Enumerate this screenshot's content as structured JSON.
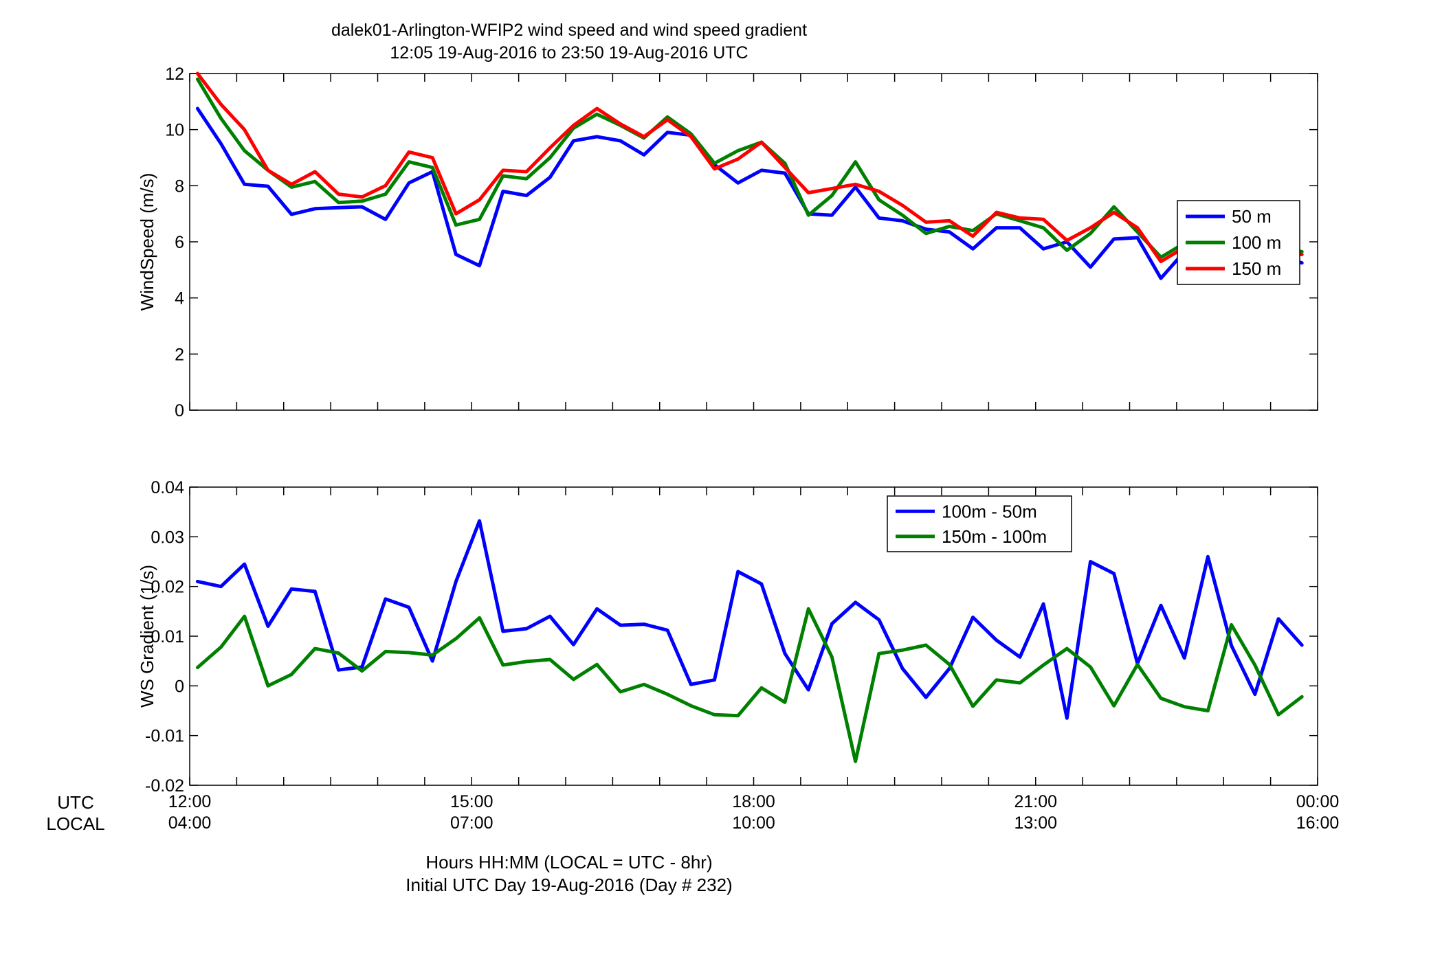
{
  "figure": {
    "title_line1": "dalek01-Arlington-WFIP2  wind speed and wind speed gradient",
    "title_line2": "12:05 19-Aug-2016 to 23:50 19-Aug-2016  UTC",
    "row_label_utc": "UTC",
    "row_label_local": "LOCAL",
    "xlabel_line1": "Hours HH:MM  (LOCAL = UTC - 8hr)",
    "xlabel_line2": "Initial UTC Day 19-Aug-2016 (Day # 232)"
  },
  "colors": {
    "blue": "#0000ff",
    "green": "#008000",
    "red": "#ff0000"
  },
  "chart_data": [
    {
      "type": "line",
      "title": "",
      "xlabel": "",
      "ylabel": "WindSpeed (m/s)",
      "xlim": [
        12.0,
        24.0
      ],
      "ylim": [
        0,
        12
      ],
      "yticks": [
        0,
        2,
        4,
        6,
        8,
        10,
        12
      ],
      "ytick_labels": [
        "0",
        "2",
        "4",
        "6",
        "8",
        "10",
        "12"
      ],
      "xtick_positions": [
        12,
        12.5,
        13,
        13.5,
        14,
        14.5,
        15,
        15.5,
        16,
        16.5,
        17,
        17.5,
        18,
        18.5,
        19,
        19.5,
        20,
        20.5,
        21,
        21.5,
        22,
        22.5,
        23,
        23.5,
        24
      ],
      "grid": false,
      "legend": "right",
      "x": [
        12.083,
        12.333,
        12.583,
        12.833,
        13.083,
        13.333,
        13.583,
        13.833,
        14.083,
        14.333,
        14.583,
        14.833,
        15.083,
        15.333,
        15.583,
        15.833,
        16.083,
        16.333,
        16.583,
        16.833,
        17.083,
        17.333,
        17.583,
        17.833,
        18.083,
        18.333,
        18.583,
        18.833,
        19.083,
        19.333,
        19.583,
        19.833,
        20.083,
        20.333,
        20.583,
        20.833,
        21.083,
        21.333,
        21.583,
        21.833,
        22.083,
        22.333,
        22.583,
        22.833,
        23.083,
        23.333,
        23.583,
        23.833
      ],
      "series": [
        {
          "name": "50 m",
          "color": "#0000ff",
          "values": [
            10.75,
            9.5,
            8.05,
            7.98,
            6.98,
            7.18,
            7.22,
            7.25,
            6.8,
            8.1,
            8.5,
            5.55,
            5.15,
            7.8,
            7.65,
            8.3,
            9.6,
            9.75,
            9.6,
            9.1,
            9.9,
            9.8,
            8.75,
            8.1,
            8.55,
            8.45,
            7.0,
            6.95,
            7.95,
            6.85,
            6.75,
            6.45,
            6.35,
            5.75,
            6.5,
            6.5,
            5.75,
            6.0,
            5.1,
            6.1,
            6.15,
            4.7,
            5.65,
            5.6,
            5.45,
            5.6,
            5.5,
            5.25
          ]
        },
        {
          "name": "100 m",
          "color": "#008000",
          "values": [
            11.8,
            10.4,
            9.25,
            8.55,
            7.95,
            8.15,
            7.4,
            7.45,
            7.7,
            8.85,
            8.65,
            6.6,
            6.8,
            8.35,
            8.25,
            9.0,
            10.05,
            10.55,
            10.15,
            9.7,
            10.45,
            9.85,
            8.8,
            9.25,
            9.55,
            8.8,
            6.95,
            7.65,
            8.85,
            7.5,
            6.95,
            6.3,
            6.55,
            6.4,
            7.0,
            6.75,
            6.5,
            5.7,
            6.3,
            7.25,
            6.35,
            5.45,
            5.95,
            5.8,
            6.0,
            5.75,
            5.7,
            5.65
          ]
        },
        {
          "name": "150 m",
          "color": "#ff0000",
          "values": [
            12.0,
            10.9,
            10.0,
            8.55,
            8.05,
            8.5,
            7.7,
            7.6,
            8.0,
            9.2,
            9.0,
            7.0,
            7.5,
            8.55,
            8.5,
            9.35,
            10.15,
            10.75,
            10.2,
            9.75,
            10.35,
            9.75,
            8.6,
            8.95,
            9.55,
            8.65,
            7.75,
            7.9,
            8.05,
            7.8,
            7.3,
            6.7,
            6.75,
            6.2,
            7.05,
            6.85,
            6.8,
            6.05,
            6.5,
            7.05,
            6.5,
            5.3,
            5.8,
            5.75,
            5.95,
            5.8,
            5.6,
            5.55
          ]
        }
      ]
    },
    {
      "type": "line",
      "title": "",
      "xlabel": "",
      "ylabel": "WS Gradient (1/s)",
      "xlim": [
        12.0,
        24.0
      ],
      "ylim": [
        -0.02,
        0.04
      ],
      "yticks": [
        -0.02,
        -0.01,
        0,
        0.01,
        0.02,
        0.03,
        0.04
      ],
      "ytick_labels": [
        "-0.02",
        "-0.01",
        "0",
        "0.01",
        "0.02",
        "0.03",
        "0.04"
      ],
      "xtick_positions": [
        12,
        12.5,
        13,
        13.5,
        14,
        14.5,
        15,
        15.5,
        16,
        16.5,
        17,
        17.5,
        18,
        18.5,
        19,
        19.5,
        20,
        20.5,
        21,
        21.5,
        22,
        22.5,
        23,
        23.5,
        24
      ],
      "grid": false,
      "legend": "top-right",
      "x": [
        12.083,
        12.333,
        12.583,
        12.833,
        13.083,
        13.333,
        13.583,
        13.833,
        14.083,
        14.333,
        14.583,
        14.833,
        15.083,
        15.333,
        15.583,
        15.833,
        16.083,
        16.333,
        16.583,
        16.833,
        17.083,
        17.333,
        17.583,
        17.833,
        18.083,
        18.333,
        18.583,
        18.833,
        19.083,
        19.333,
        19.583,
        19.833,
        20.083,
        20.333,
        20.583,
        20.833,
        21.083,
        21.333,
        21.583,
        21.833,
        22.083,
        22.333,
        22.583,
        22.833,
        23.083,
        23.333,
        23.583,
        23.833
      ],
      "series": [
        {
          "name": "100m - 50m",
          "color": "#0000ff",
          "values": [
            0.021,
            0.02,
            0.0245,
            0.012,
            0.0195,
            0.019,
            0.0032,
            0.0038,
            0.0175,
            0.0158,
            0.005,
            0.021,
            0.0332,
            0.011,
            0.0115,
            0.014,
            0.0083,
            0.0155,
            0.0122,
            0.0124,
            0.0112,
            0.0003,
            0.0012,
            0.023,
            0.0205,
            0.0065,
            -0.0008,
            0.0125,
            0.0168,
            0.0133,
            0.0035,
            -0.0023,
            0.0035,
            0.0138,
            0.0092,
            0.0058,
            0.0165,
            -0.0065,
            0.025,
            0.0226,
            0.0045,
            0.0162,
            0.0056,
            0.026,
            0.0081,
            -0.0017,
            0.0135,
            0.0082
          ]
        },
        {
          "name": "150m - 100m",
          "color": "#008000",
          "values": [
            0.0037,
            0.0078,
            0.014,
            0.0,
            0.0023,
            0.0075,
            0.0066,
            0.003,
            0.0069,
            0.0067,
            0.0062,
            0.0095,
            0.0137,
            0.0042,
            0.0049,
            0.0053,
            0.0013,
            0.0043,
            -0.0012,
            0.0003,
            -0.0017,
            -0.004,
            -0.0058,
            -0.006,
            -0.0004,
            -0.0033,
            0.0155,
            0.0058,
            -0.0152,
            0.0065,
            0.0072,
            0.0082,
            0.0043,
            -0.0041,
            0.0012,
            0.0006,
            0.0042,
            0.0075,
            0.0038,
            -0.004,
            0.0043,
            -0.0025,
            -0.0042,
            -0.005,
            0.0123,
            0.0042,
            -0.0058,
            -0.0022
          ]
        }
      ]
    }
  ],
  "xaxis": {
    "utc_labels": [
      "12:00",
      "15:00",
      "18:00",
      "21:00",
      "00:00"
    ],
    "local_labels": [
      "04:00",
      "07:00",
      "10:00",
      "13:00",
      "16:00"
    ],
    "label_positions": [
      12,
      15,
      18,
      21,
      24
    ]
  }
}
